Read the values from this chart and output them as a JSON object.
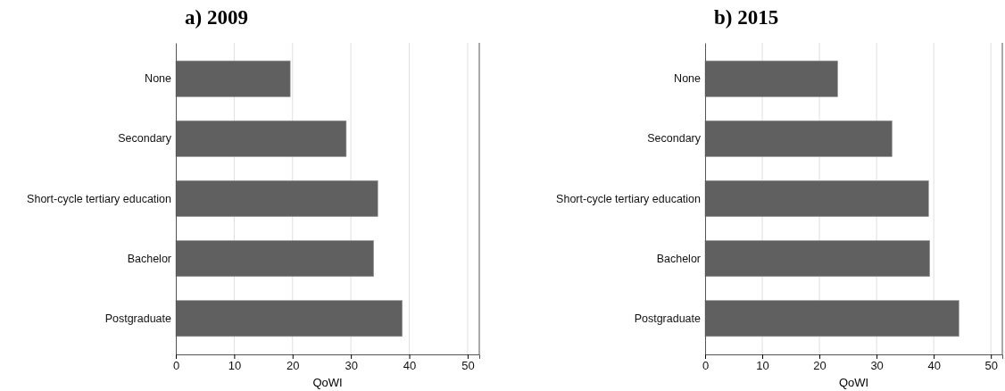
{
  "chart_data": [
    {
      "type": "bar",
      "title": "a) 2009",
      "orientation": "horizontal",
      "categories": [
        "None",
        "Secondary",
        "Short-cycle tertiary education",
        "Bachelor",
        "Postgraduate"
      ],
      "values": [
        19.6,
        29.2,
        34.6,
        33.9,
        38.8
      ],
      "color": "#606060",
      "xlim": [
        0,
        52
      ],
      "xticks": [
        0,
        10,
        20,
        30,
        40,
        50
      ],
      "xlabel": "QoWI",
      "grid": "x"
    },
    {
      "type": "bar",
      "title": "b) 2015",
      "orientation": "horizontal",
      "categories": [
        "None",
        "Secondary",
        "Short-cycle tertiary education",
        "Bachelor",
        "Postgraduate"
      ],
      "values": [
        23.2,
        32.7,
        39.1,
        39.3,
        44.4
      ],
      "color": "#606060",
      "xlim": [
        0,
        52
      ],
      "xticks": [
        0,
        10,
        20,
        30,
        40,
        50
      ],
      "xlabel": "QoWI",
      "grid": "x"
    }
  ]
}
